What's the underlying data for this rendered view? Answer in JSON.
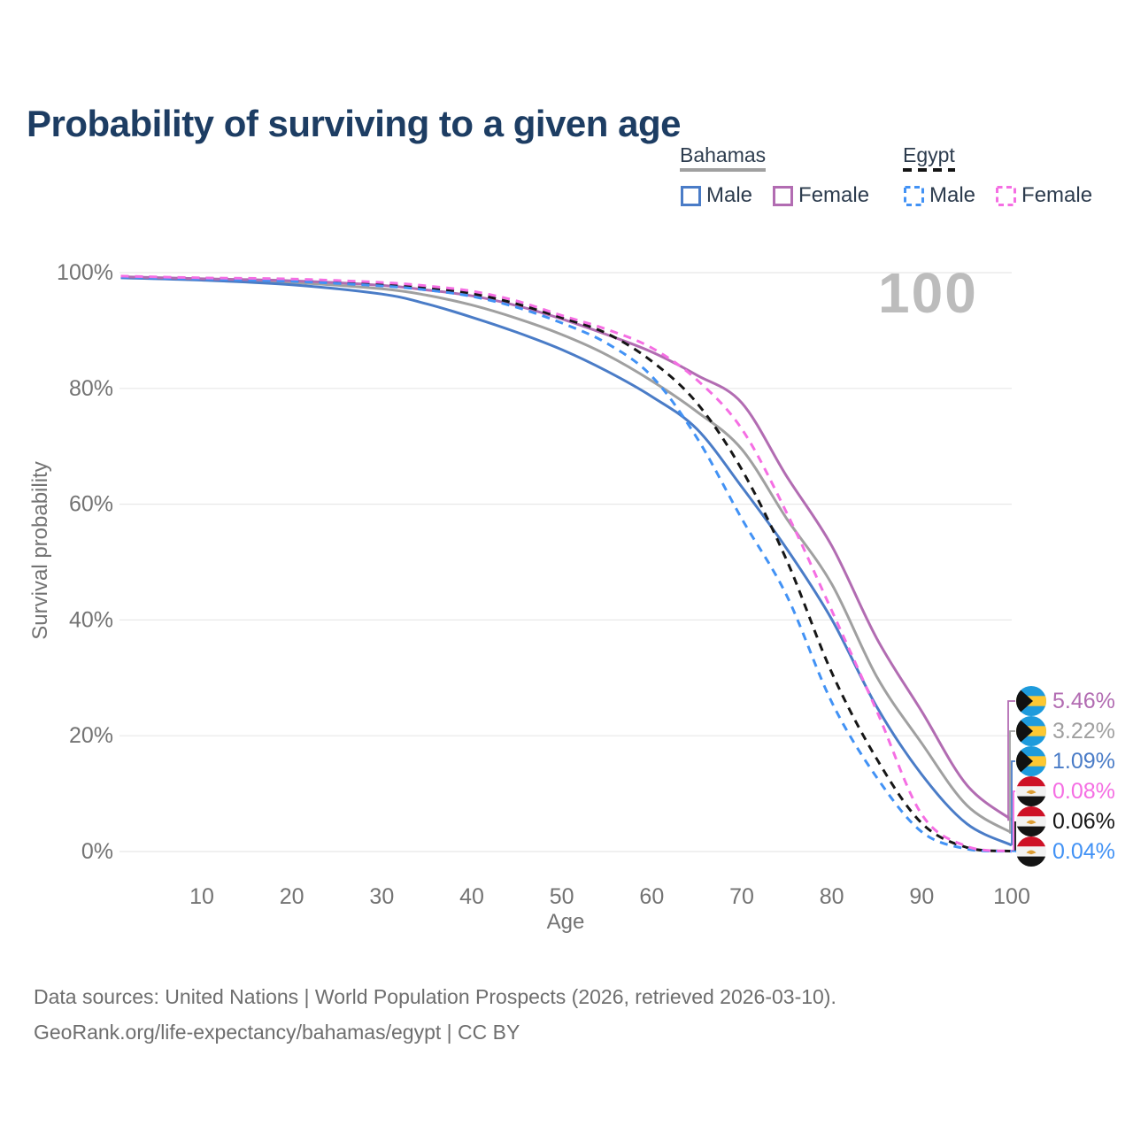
{
  "title": "Probability of surviving to a given age",
  "colors": {
    "title_text": "#1d3d63",
    "legend_text": "#2d3c4e",
    "axis_text": "#737373",
    "gridline": "#e8e8e8",
    "age_indicator": "#bcbcbc",
    "footer_text": "#6e6e6e",
    "bahamas_flag_aqua": "#1e9bdc",
    "bahamas_flag_yellow": "#fdc832",
    "bahamas_flag_black": "#111111",
    "egypt_flag_red": "#ce1126",
    "egypt_flag_white": "#f2f2f2",
    "egypt_flag_black": "#141414",
    "egypt_flag_gold": "#dd9d33"
  },
  "legend": {
    "groups": [
      {
        "country": "Bahamas",
        "line_style": "solid",
        "line_color": "#a0a0a0",
        "items": [
          {
            "label": "Male",
            "color": "#4a7cc7",
            "dashed": false
          },
          {
            "label": "Female",
            "color": "#b26cb2",
            "dashed": false
          }
        ]
      },
      {
        "country": "Egypt",
        "line_style": "dashed",
        "line_color": "#141414",
        "items": [
          {
            "label": "Male",
            "color": "#4292f5",
            "dashed": true
          },
          {
            "label": "Female",
            "color": "#f56ee3",
            "dashed": true
          }
        ]
      }
    ]
  },
  "chart_data": {
    "type": "line",
    "title": "Probability of surviving to a given age",
    "xlabel": "Age",
    "ylabel": "Survival probability",
    "xlim": [
      1,
      100
    ],
    "ylim": [
      0,
      100
    ],
    "grid": "horizontal",
    "age_indicator": "100",
    "x_ticks": [
      10,
      20,
      30,
      40,
      50,
      60,
      70,
      80,
      90,
      100
    ],
    "y_ticks": [
      {
        "value": 0,
        "label": "0%"
      },
      {
        "value": 20,
        "label": "20%"
      },
      {
        "value": 40,
        "label": "40%"
      },
      {
        "value": 60,
        "label": "60%"
      },
      {
        "value": 80,
        "label": "80%"
      },
      {
        "value": 100,
        "label": "100%"
      }
    ],
    "x": [
      1,
      10,
      20,
      30,
      35,
      40,
      45,
      50,
      55,
      60,
      65,
      70,
      75,
      80,
      85,
      90,
      95,
      100
    ],
    "series": [
      {
        "name": "Bahamas Female",
        "country": "Bahamas",
        "sex": "Female",
        "color": "#b26cb2",
        "dashed": false,
        "flag": "bahamas",
        "end_label": "5.46%",
        "values": [
          99.3,
          98.95,
          98.6,
          97.8,
          97.0,
          96.0,
          94.3,
          92.0,
          89.3,
          86.3,
          82.3,
          77.5,
          64.8,
          52.8,
          36.8,
          24.2,
          11.5,
          5.46
        ]
      },
      {
        "name": "Bahamas Total",
        "country": "Bahamas",
        "sex": "Both sexes",
        "color": "#a0a0a0",
        "dashed": false,
        "flag": "bahamas",
        "end_label": "3.22%",
        "values": [
          99.2,
          98.85,
          98.3,
          97.2,
          96.1,
          94.4,
          92.1,
          89.3,
          85.8,
          81.3,
          76.0,
          69.5,
          57.5,
          46.2,
          30.2,
          18.7,
          8.0,
          3.22
        ]
      },
      {
        "name": "Bahamas Male",
        "country": "Bahamas",
        "sex": "Male",
        "color": "#4a7cc7",
        "dashed": false,
        "flag": "bahamas",
        "end_label": "1.09%",
        "values": [
          99.1,
          98.7,
          97.9,
          96.3,
          94.6,
          92.3,
          89.7,
          86.7,
          83.0,
          78.6,
          73.0,
          63.0,
          52.3,
          40.1,
          25.0,
          13.3,
          4.8,
          1.09
        ]
      },
      {
        "name": "Egypt Female",
        "country": "Egypt",
        "sex": "Female",
        "color": "#f56ee3",
        "dashed": true,
        "flag": "egypt",
        "end_label": "0.08%",
        "values": [
          99.4,
          99.1,
          98.9,
          98.3,
          97.7,
          96.8,
          95.1,
          92.6,
          90.2,
          87.0,
          81.5,
          73.0,
          58.5,
          41.6,
          24.3,
          6.4,
          0.9,
          0.08
        ]
      },
      {
        "name": "Egypt Total",
        "country": "Egypt",
        "sex": "Both sexes",
        "color": "#161616",
        "dashed": true,
        "flag": "egypt",
        "end_label": "0.06%",
        "values": [
          99.35,
          99.0,
          98.7,
          98.0,
          97.4,
          96.4,
          94.6,
          92.2,
          89.5,
          84.7,
          77.5,
          66.0,
          50.3,
          30.9,
          16.0,
          4.9,
          0.7,
          0.06
        ]
      },
      {
        "name": "Egypt Male",
        "country": "Egypt",
        "sex": "Male",
        "color": "#4292f5",
        "dashed": true,
        "flag": "egypt",
        "end_label": "0.04%",
        "values": [
          99.25,
          98.9,
          98.5,
          97.7,
          97.0,
          95.9,
          94.0,
          91.3,
          87.8,
          82.1,
          71.5,
          57.5,
          44.2,
          25.8,
          12.8,
          3.4,
          0.45,
          0.04
        ]
      }
    ]
  },
  "footer": {
    "line1": "Data sources: United Nations | World Population Prospects (2026, retrieved 2026-03-10).",
    "line2": "GeoRank.org/life-expectancy/bahamas/egypt | CC BY"
  }
}
